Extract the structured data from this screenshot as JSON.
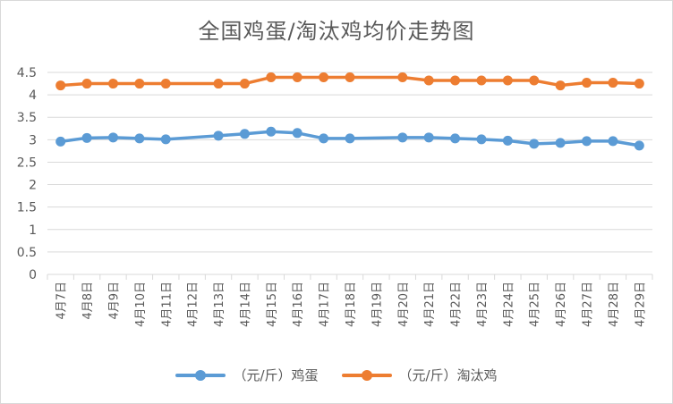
{
  "chart_data": {
    "type": "line",
    "title": "全国鸡蛋/淘汰鸡均价走势图",
    "xlabel": "",
    "ylabel": "",
    "categories": [
      "4月7日",
      "4月8日",
      "4月9日",
      "4月10日",
      "4月11日",
      "4月12日",
      "4月13日",
      "4月14日",
      "4月15日",
      "4月16日",
      "4月17日",
      "4月18日",
      "4月19日",
      "4月20日",
      "4月21日",
      "4月22日",
      "4月23日",
      "4月24日",
      "4月25日",
      "4月26日",
      "4月27日",
      "4月28日",
      "4月29日"
    ],
    "ylim": [
      0,
      4.5
    ],
    "yticks": [
      "0",
      "0.5",
      "1",
      "1.5",
      "2",
      "2.5",
      "3",
      "3.5",
      "4",
      "4.5"
    ],
    "grid": true,
    "legend_position": "bottom",
    "series": [
      {
        "name": "（元/斤）鸡蛋",
        "color": "#5b9bd5",
        "values": [
          2.96,
          3.04,
          3.05,
          3.03,
          3.01,
          null,
          3.09,
          3.13,
          3.18,
          3.15,
          3.03,
          3.03,
          null,
          3.05,
          3.05,
          3.03,
          3.01,
          2.98,
          2.91,
          2.93,
          2.97,
          2.97,
          2.87
        ]
      },
      {
        "name": "（元/斤）淘汰鸡",
        "color": "#ed7d31",
        "values": [
          4.21,
          4.25,
          4.25,
          4.25,
          4.25,
          null,
          4.25,
          4.25,
          4.39,
          4.39,
          4.39,
          4.39,
          null,
          4.39,
          4.32,
          4.32,
          4.32,
          4.32,
          4.32,
          4.21,
          4.27,
          4.27,
          4.25
        ]
      }
    ]
  }
}
